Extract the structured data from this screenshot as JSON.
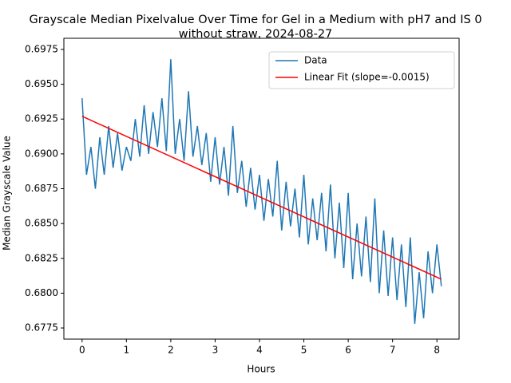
{
  "chart_data": {
    "type": "line",
    "title": [
      "Grayscale Median Pixelvalue Over Time for Gel in a Medium with pH7 and IS 0",
      "without straw, 2024-08-27"
    ],
    "x_label": "Hours",
    "y_label": "Median Grayscale Value",
    "xlim": [
      -0.41,
      8.5
    ],
    "ylim": [
      0.6767,
      0.6983
    ],
    "xticks": [
      0,
      1,
      2,
      3,
      4,
      5,
      6,
      7,
      8
    ],
    "yticks": [
      0.6775,
      {
        "value": 0.68,
        "label": "0.6800"
      },
      0.6825,
      {
        "value": 0.685,
        "label": "0.6850"
      },
      0.6875,
      {
        "value": 0.69,
        "label": "0.6900"
      },
      0.6925,
      {
        "value": 0.695,
        "label": "0.6950"
      },
      0.6975
    ],
    "legend": "upper right",
    "series": [
      {
        "name": "Data",
        "color": "#1f77b4",
        "x": [
          0,
          0.1,
          0.2,
          0.3,
          0.4,
          0.5,
          0.6,
          0.7,
          0.8,
          0.9,
          1,
          1.1,
          1.2,
          1.3,
          1.4,
          1.5,
          1.6,
          1.7,
          1.8,
          1.9,
          2,
          2.1,
          2.2,
          2.3,
          2.4,
          2.5,
          2.6,
          2.7,
          2.8,
          2.9,
          3,
          3.1,
          3.2,
          3.3,
          3.4,
          3.5,
          3.6,
          3.7,
          3.8,
          3.9,
          4,
          4.1,
          4.2,
          4.3,
          4.4,
          4.5,
          4.6,
          4.7,
          4.8,
          4.9,
          5,
          5.1,
          5.2,
          5.3,
          5.4,
          5.5,
          5.6,
          5.7,
          5.8,
          5.9,
          6,
          6.1,
          6.2,
          6.3,
          6.4,
          6.5,
          6.6,
          6.7,
          6.8,
          6.9,
          7,
          7.1,
          7.2,
          7.3,
          7.4,
          7.5,
          7.6,
          7.7,
          7.8,
          7.9,
          8,
          8.1
        ],
        "values": [
          0.694,
          0.6885,
          0.6905,
          0.6875,
          0.6912,
          0.6885,
          0.692,
          0.689,
          0.6915,
          0.6888,
          0.6905,
          0.6895,
          0.6925,
          0.6898,
          0.6935,
          0.69,
          0.693,
          0.6905,
          0.694,
          0.6902,
          0.6968,
          0.69,
          0.6925,
          0.6895,
          0.6945,
          0.6898,
          0.692,
          0.6892,
          0.6915,
          0.688,
          0.6912,
          0.6878,
          0.6905,
          0.687,
          0.692,
          0.6872,
          0.6895,
          0.6862,
          0.689,
          0.686,
          0.6885,
          0.6852,
          0.6882,
          0.6855,
          0.6895,
          0.6845,
          0.688,
          0.6848,
          0.6875,
          0.684,
          0.6885,
          0.6835,
          0.6868,
          0.6838,
          0.6872,
          0.683,
          0.6878,
          0.6825,
          0.6865,
          0.6818,
          0.6872,
          0.681,
          0.685,
          0.6812,
          0.6855,
          0.6808,
          0.6868,
          0.68,
          0.6845,
          0.6798,
          0.684,
          0.6795,
          0.6835,
          0.679,
          0.684,
          0.6778,
          0.6815,
          0.6782,
          0.683,
          0.68,
          0.6835,
          0.6805
        ]
      },
      {
        "name": "Linear Fit (slope=-0.0015)",
        "color": "#ff0000",
        "x": [
          0,
          8.1
        ],
        "values": [
          0.6927,
          0.681
        ]
      }
    ]
  }
}
